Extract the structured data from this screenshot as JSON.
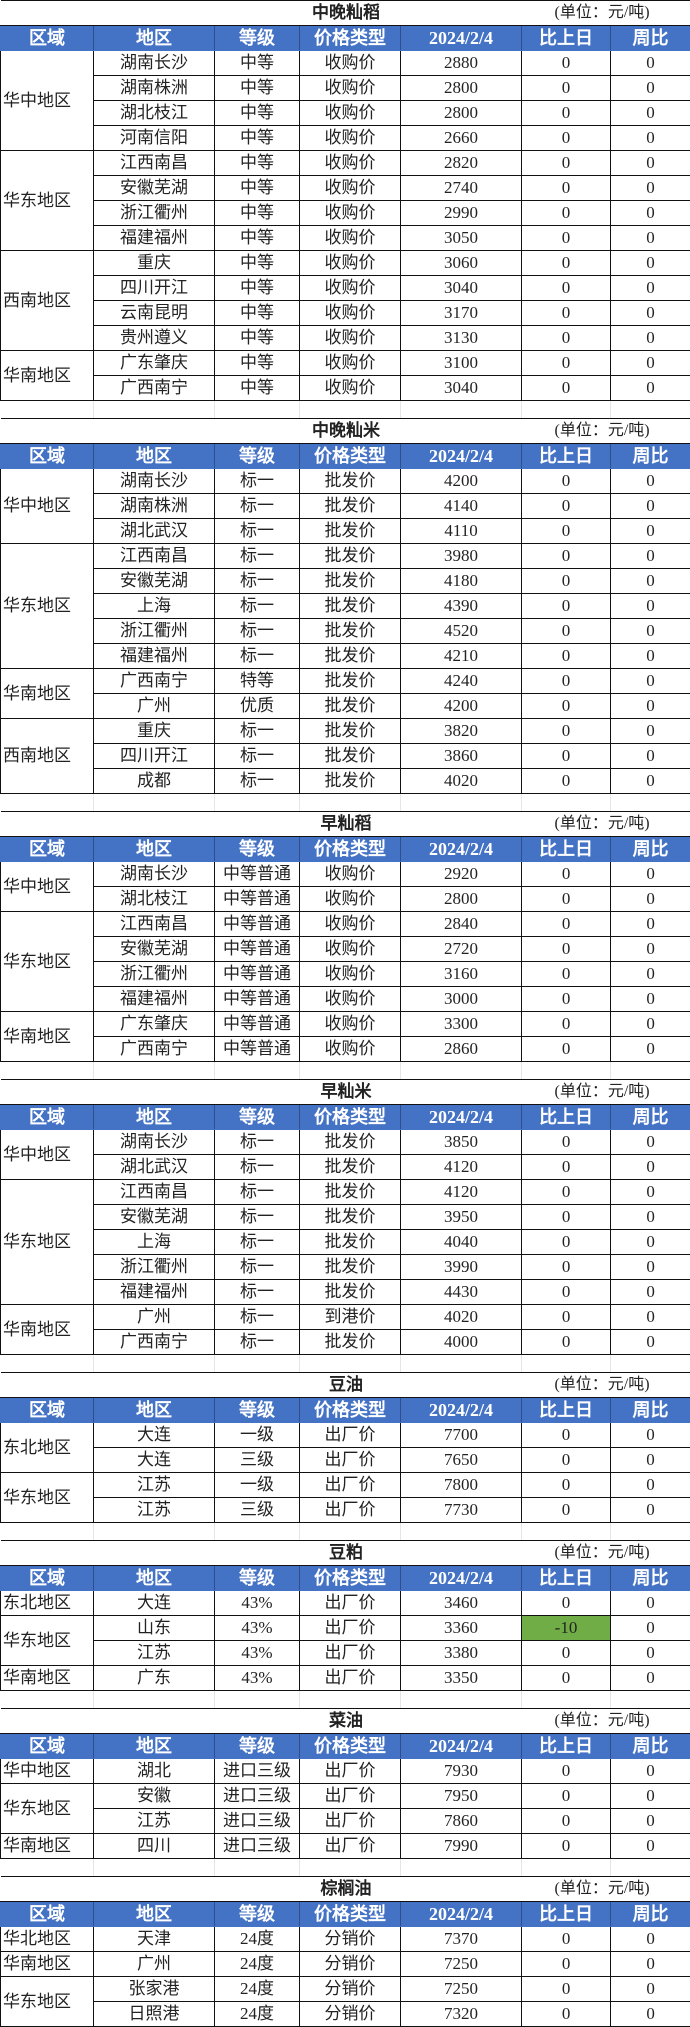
{
  "colors": {
    "header_bg": "#4472C4",
    "header_text": "#FFFFFF",
    "highlight_down": "#70AD47"
  },
  "headers": [
    "区域",
    "地区",
    "等级",
    "价格类型",
    "2024/2/4",
    "比上日",
    "周比"
  ],
  "unit": "(单位：元/吨)",
  "tables": [
    {
      "title": "中晚籼稻",
      "groups": [
        {
          "region": "华中地区",
          "rows": [
            [
              "湖南长沙",
              "中等",
              "收购价",
              "2880",
              "0",
              "0"
            ],
            [
              "湖南株洲",
              "中等",
              "收购价",
              "2800",
              "0",
              "0"
            ],
            [
              "湖北枝江",
              "中等",
              "收购价",
              "2800",
              "0",
              "0"
            ],
            [
              "河南信阳",
              "中等",
              "收购价",
              "2660",
              "0",
              "0"
            ]
          ]
        },
        {
          "region": "华东地区",
          "rows": [
            [
              "江西南昌",
              "中等",
              "收购价",
              "2820",
              "0",
              "0"
            ],
            [
              "安徽芜湖",
              "中等",
              "收购价",
              "2740",
              "0",
              "0"
            ],
            [
              "浙江衢州",
              "中等",
              "收购价",
              "2990",
              "0",
              "0"
            ],
            [
              "福建福州",
              "中等",
              "收购价",
              "3050",
              "0",
              "0"
            ]
          ]
        },
        {
          "region": "西南地区",
          "rows": [
            [
              "重庆",
              "中等",
              "收购价",
              "3060",
              "0",
              "0"
            ],
            [
              "四川开江",
              "中等",
              "收购价",
              "3040",
              "0",
              "0"
            ],
            [
              "云南昆明",
              "中等",
              "收购价",
              "3170",
              "0",
              "0"
            ],
            [
              "贵州遵义",
              "中等",
              "收购价",
              "3130",
              "0",
              "0"
            ]
          ]
        },
        {
          "region": "华南地区",
          "rows": [
            [
              "广东肇庆",
              "中等",
              "收购价",
              "3100",
              "0",
              "0"
            ],
            [
              "广西南宁",
              "中等",
              "收购价",
              "3040",
              "0",
              "0"
            ]
          ]
        }
      ]
    },
    {
      "title": "中晚籼米",
      "groups": [
        {
          "region": "华中地区",
          "rows": [
            [
              "湖南长沙",
              "标一",
              "批发价",
              "4200",
              "0",
              "0"
            ],
            [
              "湖南株洲",
              "标一",
              "批发价",
              "4140",
              "0",
              "0"
            ],
            [
              "湖北武汉",
              "标一",
              "批发价",
              "4110",
              "0",
              "0"
            ]
          ]
        },
        {
          "region": "华东地区",
          "rows": [
            [
              "江西南昌",
              "标一",
              "批发价",
              "3980",
              "0",
              "0"
            ],
            [
              "安徽芜湖",
              "标一",
              "批发价",
              "4180",
              "0",
              "0"
            ],
            [
              "上海",
              "标一",
              "批发价",
              "4390",
              "0",
              "0"
            ],
            [
              "浙江衢州",
              "标一",
              "批发价",
              "4520",
              "0",
              "0"
            ],
            [
              "福建福州",
              "标一",
              "批发价",
              "4210",
              "0",
              "0"
            ]
          ]
        },
        {
          "region": "华南地区",
          "rows": [
            [
              "广西南宁",
              "特等",
              "批发价",
              "4240",
              "0",
              "0"
            ],
            [
              "广州",
              "优质",
              "批发价",
              "4200",
              "0",
              "0"
            ]
          ]
        },
        {
          "region": "西南地区",
          "rows": [
            [
              "重庆",
              "标一",
              "批发价",
              "3820",
              "0",
              "0"
            ],
            [
              "四川开江",
              "标一",
              "批发价",
              "3860",
              "0",
              "0"
            ],
            [
              "成都",
              "标一",
              "批发价",
              "4020",
              "0",
              "0"
            ]
          ]
        }
      ]
    },
    {
      "title": "早籼稻",
      "groups": [
        {
          "region": "华中地区",
          "rows": [
            [
              "湖南长沙",
              "中等普通",
              "收购价",
              "2920",
              "0",
              "0"
            ],
            [
              "湖北枝江",
              "中等普通",
              "收购价",
              "2800",
              "0",
              "0"
            ]
          ]
        },
        {
          "region": "华东地区",
          "rows": [
            [
              "江西南昌",
              "中等普通",
              "收购价",
              "2840",
              "0",
              "0"
            ],
            [
              "安徽芜湖",
              "中等普通",
              "收购价",
              "2720",
              "0",
              "0"
            ],
            [
              "浙江衢州",
              "中等普通",
              "收购价",
              "3160",
              "0",
              "0"
            ],
            [
              "福建福州",
              "中等普通",
              "收购价",
              "3000",
              "0",
              "0"
            ]
          ]
        },
        {
          "region": "华南地区",
          "rows": [
            [
              "广东肇庆",
              "中等普通",
              "收购价",
              "3300",
              "0",
              "0"
            ],
            [
              "广西南宁",
              "中等普通",
              "收购价",
              "2860",
              "0",
              "0"
            ]
          ]
        }
      ]
    },
    {
      "title": "早籼米",
      "groups": [
        {
          "region": "华中地区",
          "rows": [
            [
              "湖南长沙",
              "标一",
              "批发价",
              "3850",
              "0",
              "0"
            ],
            [
              "湖北武汉",
              "标一",
              "批发价",
              "4120",
              "0",
              "0"
            ]
          ]
        },
        {
          "region": "华东地区",
          "rows": [
            [
              "江西南昌",
              "标一",
              "批发价",
              "4120",
              "0",
              "0"
            ],
            [
              "安徽芜湖",
              "标一",
              "批发价",
              "3950",
              "0",
              "0"
            ],
            [
              "上海",
              "标一",
              "批发价",
              "4040",
              "0",
              "0"
            ],
            [
              "浙江衢州",
              "标一",
              "批发价",
              "3990",
              "0",
              "0"
            ],
            [
              "福建福州",
              "标一",
              "批发价",
              "4430",
              "0",
              "0"
            ]
          ]
        },
        {
          "region": "华南地区",
          "rows": [
            [
              "广州",
              "标一",
              "到港价",
              "4020",
              "0",
              "0"
            ],
            [
              "广西南宁",
              "标一",
              "批发价",
              "4000",
              "0",
              "0"
            ]
          ]
        }
      ]
    },
    {
      "title": "豆油",
      "groups": [
        {
          "region": "东北地区",
          "rows": [
            [
              "大连",
              "一级",
              "出厂价",
              "7700",
              "0",
              "0"
            ],
            [
              "大连",
              "三级",
              "出厂价",
              "7650",
              "0",
              "0"
            ]
          ]
        },
        {
          "region": "华东地区",
          "rows": [
            [
              "江苏",
              "一级",
              "出厂价",
              "7800",
              "0",
              "0"
            ],
            [
              "江苏",
              "三级",
              "出厂价",
              "7730",
              "0",
              "0"
            ]
          ]
        }
      ]
    },
    {
      "title": "豆粕",
      "groups": [
        {
          "region": "东北地区",
          "rows": [
            [
              "大连",
              "43%",
              "出厂价",
              "3460",
              "0",
              "0"
            ]
          ]
        },
        {
          "region": "华东地区",
          "rows": [
            [
              "山东",
              "43%",
              "出厂价",
              "3360",
              "-10",
              "0"
            ],
            [
              "江苏",
              "43%",
              "出厂价",
              "3380",
              "0",
              "0"
            ]
          ]
        },
        {
          "region": "华南地区",
          "rows": [
            [
              "广东",
              "43%",
              "出厂价",
              "3350",
              "0",
              "0"
            ]
          ]
        }
      ]
    },
    {
      "title": "菜油",
      "groups": [
        {
          "region": "华中地区",
          "rows": [
            [
              "湖北",
              "进口三级",
              "出厂价",
              "7930",
              "0",
              "0"
            ]
          ]
        },
        {
          "region": "华东地区",
          "rows": [
            [
              "安徽",
              "进口三级",
              "出厂价",
              "7950",
              "0",
              "0"
            ],
            [
              "江苏",
              "进口三级",
              "出厂价",
              "7860",
              "0",
              "0"
            ]
          ]
        },
        {
          "region": "华南地区",
          "rows": [
            [
              "四川",
              "进口三级",
              "出厂价",
              "7990",
              "0",
              "0"
            ]
          ]
        }
      ]
    },
    {
      "title": "棕榈油",
      "groups": [
        {
          "region": "华北地区",
          "rows": [
            [
              "天津",
              "24度",
              "分销价",
              "7370",
              "0",
              "0"
            ]
          ]
        },
        {
          "region": "华南地区",
          "rows": [
            [
              "广州",
              "24度",
              "分销价",
              "7250",
              "0",
              "0"
            ]
          ]
        },
        {
          "region": "华东地区",
          "rows": [
            [
              "张家港",
              "24度",
              "分销价",
              "7250",
              "0",
              "0"
            ],
            [
              "日照港",
              "24度",
              "分销价",
              "7320",
              "0",
              "0"
            ]
          ]
        }
      ]
    }
  ]
}
